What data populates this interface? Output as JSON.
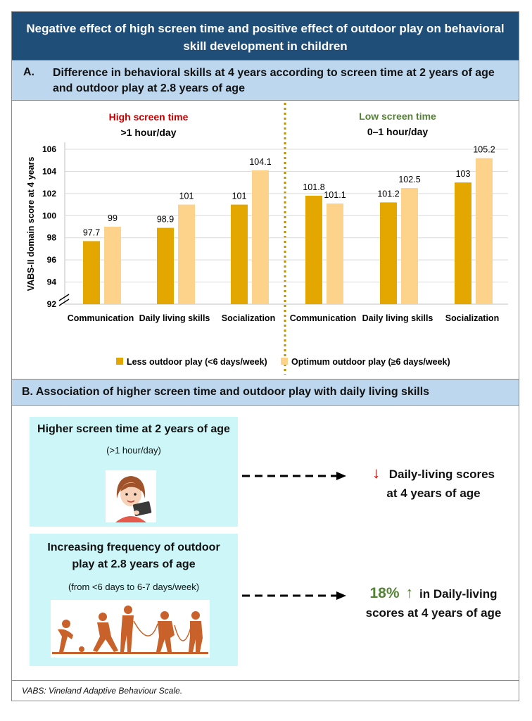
{
  "title": "Negative effect of high screen time and positive effect of outdoor play on behavioral skill development in children",
  "section_a": {
    "letter": "A.",
    "heading": "Difference in behavioral skills at 4 years according to screen time at 2 years of age and outdoor play at 2.8 years of age"
  },
  "colors": {
    "dark_blue": "#1f4e79",
    "light_blue": "#bdd7ee",
    "less_play": "#e3a700",
    "optimum_play": "#fdd28b",
    "high_screen": "#c00000",
    "low_screen": "#548235",
    "box_bg": "#ccf6f7",
    "down_arrow": "#c00000",
    "up_arrow": "#548235"
  },
  "chart_data": {
    "type": "bar",
    "ylabel": "VABS-II domain score at 4 years",
    "ylim": [
      92,
      106
    ],
    "yticks": [
      92,
      94,
      96,
      98,
      100,
      102,
      104,
      106
    ],
    "groups": [
      {
        "title": "High screen time",
        "subtitle": ">1 hour/day",
        "categories": [
          "Communication",
          "Daily living skills",
          "Socialization"
        ],
        "series": [
          {
            "name": "Less outdoor play (<6 days/week)",
            "values": [
              97.7,
              98.9,
              101
            ],
            "labels": [
              "97.7",
              "98.9",
              "101"
            ]
          },
          {
            "name": "Optimum outdoor play (≥6 days/week)",
            "values": [
              99,
              101,
              104.1
            ],
            "labels": [
              "99",
              "101",
              "104.1"
            ]
          }
        ]
      },
      {
        "title": "Low screen time",
        "subtitle": "0–1 hour/day",
        "categories": [
          "Communication",
          "Daily living skills",
          "Socialization"
        ],
        "series": [
          {
            "name": "Less outdoor play (<6 days/week)",
            "values": [
              101.8,
              101.2,
              103
            ],
            "labels": [
              "101.8",
              "101.2",
              "103"
            ]
          },
          {
            "name": "Optimum outdoor play (≥6 days/week)",
            "values": [
              101.1,
              102.5,
              105.2
            ],
            "labels": [
              "101.1",
              "102.5",
              "105.2"
            ]
          }
        ]
      }
    ],
    "legend": [
      "Less outdoor play (<6 days/week)",
      "Optimum outdoor play (≥6 days/week)"
    ]
  },
  "section_b": {
    "heading": "B. Association of higher screen time and outdoor play with daily living skills",
    "box1": {
      "title": "Higher screen time at 2 years of age",
      "subtitle": "(>1 hour/day)",
      "image": "girl-with-tablet"
    },
    "box2": {
      "title_line1": "Increasing frequency of outdoor",
      "title_line2": "play at 2.8 years of age",
      "subtitle": "(from <6 days to 6-7 days/week)",
      "image": "children-playing-silhouettes"
    },
    "result1": {
      "arrow": "↓",
      "line1": "Daily-living scores",
      "line2": "at 4 years of age"
    },
    "result2": {
      "percent": "18%",
      "arrow": "↑",
      "line1_rest": "in Daily-living",
      "line2": "scores at 4 years of age"
    }
  },
  "footnote": "VABS: Vineland Adaptive Behaviour Scale."
}
